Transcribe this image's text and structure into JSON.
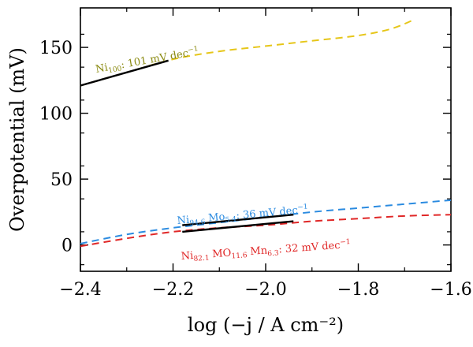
{
  "chart_data": {
    "type": "line",
    "xlabel": "log (−j / A cm⁻²)",
    "ylabel": "Overpotential (mV)",
    "xlim": [
      -2.4,
      -1.6
    ],
    "ylim": [
      -20,
      180
    ],
    "xticks": [
      -2.4,
      -2.2,
      -2.0,
      -1.8,
      -1.6
    ],
    "xtick_labels": [
      "−2.4",
      "−2.2",
      "−2.0",
      "−1.8",
      "−1.6"
    ],
    "yticks": [
      0,
      50,
      100,
      150
    ],
    "ytick_labels": [
      "0",
      "50",
      "100",
      "150"
    ],
    "grid": false,
    "legend": "none",
    "series": [
      {
        "color": "#e6c619",
        "style": "dashed",
        "points": [
          [
            -2.4,
            121
          ],
          [
            -2.3,
            131
          ],
          [
            -2.2,
            141
          ],
          [
            -2.1,
            147
          ],
          [
            -2.0,
            151
          ],
          [
            -1.9,
            155
          ],
          [
            -1.8,
            159
          ],
          [
            -1.73,
            164
          ],
          [
            -1.68,
            171
          ]
        ]
      },
      {
        "color": "#2b8be0",
        "style": "dashed",
        "points": [
          [
            -2.4,
            1
          ],
          [
            -2.3,
            8
          ],
          [
            -2.2,
            13
          ],
          [
            -2.1,
            17
          ],
          [
            -2.0,
            21
          ],
          [
            -1.9,
            25
          ],
          [
            -1.8,
            28
          ],
          [
            -1.7,
            31
          ],
          [
            -1.6,
            34
          ]
        ]
      },
      {
        "color": "#e02727",
        "style": "dashed",
        "points": [
          [
            -2.4,
            -1
          ],
          [
            -2.3,
            5
          ],
          [
            -2.2,
            10
          ],
          [
            -2.1,
            13
          ],
          [
            -2.0,
            15
          ],
          [
            -1.9,
            18
          ],
          [
            -1.8,
            20
          ],
          [
            -1.7,
            22
          ],
          [
            -1.6,
            23
          ]
        ]
      }
    ],
    "fits": [
      {
        "color": "#000000",
        "points": [
          [
            -2.4,
            121
          ],
          [
            -2.21,
            140
          ]
        ]
      },
      {
        "color": "#000000",
        "points": [
          [
            -2.18,
            15
          ],
          [
            -1.94,
            23
          ]
        ]
      },
      {
        "color": "#000000",
        "points": [
          [
            -2.18,
            10
          ],
          [
            -1.94,
            18
          ]
        ]
      }
    ]
  },
  "annotations": [
    {
      "main": "Ni",
      "sub1": "100",
      "rest": ": 101 mV dec",
      "sup": "−1",
      "color": "#8b8b12"
    },
    {
      "main": "Ni",
      "sub1": "94.6",
      "mid": " Mo",
      "sub2": "5.4",
      "rest": ": 36 mV dec",
      "sup": "−1",
      "color": "#2b8be0"
    },
    {
      "main": "Ni",
      "sub1": "82.1",
      "mid": " MO",
      "sub2": "11.6",
      "mid2": " Mn",
      "sub3": "6.3",
      "rest": ": 32 mV dec",
      "sup": "−1",
      "color": "#e02727"
    }
  ]
}
